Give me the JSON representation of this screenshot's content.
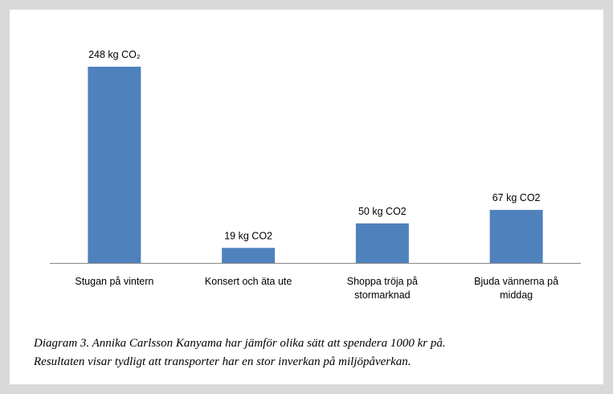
{
  "chart_data": {
    "type": "bar",
    "categories": [
      "Stugan på vintern",
      "Konsert och äta ute",
      "Shoppa tröja på stormarknad",
      "Bjuda vännerna på middag"
    ],
    "values": [
      248,
      19,
      50,
      67
    ],
    "value_labels": [
      "248 kg CO₂",
      "19 kg CO2",
      "50 kg CO2",
      "67 kg CO2"
    ],
    "color": "#4f81bd",
    "caption": [
      "Diagram 3. Annika Carlsson Kanyama har jämför olika sätt att spendera 1000 kr på.",
      "Resultaten visar tydligt att transporter har en stor inverkan på miljöpåverkan."
    ]
  }
}
